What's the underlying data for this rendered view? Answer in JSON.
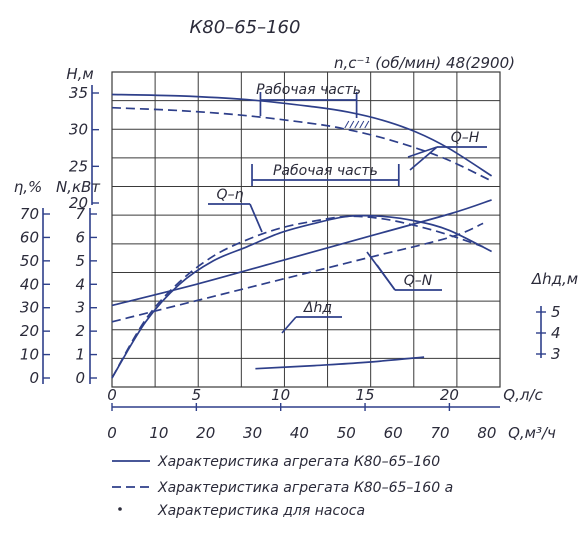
{
  "chart_data": {
    "type": "line",
    "title": "К80–65–160",
    "speed_label": "n,c⁻¹ (об/мин) 48(2900)",
    "x_primary": {
      "label": "Q,л/с",
      "range": [
        0,
        23
      ],
      "ticks": [
        0,
        5,
        10,
        15,
        20
      ]
    },
    "x_secondary": {
      "label": "Q,м³/ч",
      "range": [
        0,
        82.8
      ],
      "ticks": [
        0,
        10,
        20,
        30,
        40,
        50,
        60,
        70,
        80
      ]
    },
    "axes": {
      "H": {
        "label": "Н,м",
        "ticks": [
          20,
          25,
          30,
          35
        ]
      },
      "N": {
        "label": "N,кВт",
        "ticks": [
          0,
          1,
          2,
          3,
          4,
          5,
          6,
          7
        ]
      },
      "eta": {
        "label": "η,%",
        "ticks": [
          0,
          10,
          20,
          30,
          40,
          50,
          60,
          70
        ]
      },
      "dh": {
        "label": "Δhд,м",
        "ticks": [
          3,
          4,
          5
        ]
      }
    },
    "annotations": {
      "work_top": "Рабочая часть",
      "work_mid": "Рабочая часть",
      "qh": "Q–H",
      "qeta": "Q–η",
      "qn": "Q–N",
      "dh": "Δhд"
    },
    "series": [
      {
        "name": "Q–H",
        "axis": "H",
        "style": "solid",
        "x": [
          0,
          4,
          8,
          12,
          14,
          16,
          18,
          20,
          22.5
        ],
        "y": [
          34.8,
          34.6,
          34.1,
          33.1,
          32.4,
          31.3,
          29.7,
          27.4,
          23.7
        ]
      },
      {
        "name": "Q–H",
        "axis": "H",
        "style": "dashed",
        "x": [
          0,
          4,
          8,
          12,
          14,
          16,
          18,
          20,
          22.5
        ],
        "y": [
          33.0,
          32.6,
          31.9,
          30.8,
          30.0,
          28.9,
          27.5,
          25.8,
          23.0
        ]
      },
      {
        "name": "Q–η",
        "axis": "eta",
        "style": "solid",
        "x": [
          0,
          2,
          4,
          6,
          8,
          10,
          12,
          14,
          16,
          18,
          20,
          22.5
        ],
        "y": [
          0,
          24,
          40,
          50,
          56,
          62,
          66,
          69,
          69,
          67,
          63,
          54
        ]
      },
      {
        "name": "Q–η",
        "axis": "eta",
        "style": "dashed",
        "x": [
          0,
          2,
          4,
          6,
          8,
          10,
          12,
          14,
          16,
          18,
          20,
          22
        ],
        "y": [
          0,
          25,
          41,
          52,
          59,
          64,
          67,
          69,
          68,
          65,
          61,
          56
        ]
      },
      {
        "name": "Q–N",
        "axis": "N",
        "style": "solid",
        "x": [
          0,
          5,
          10,
          15,
          20,
          22.5
        ],
        "y": [
          3.1,
          4.0,
          5.0,
          6.0,
          7.0,
          7.6
        ]
      },
      {
        "name": "Q–N",
        "axis": "N",
        "style": "dashed",
        "x": [
          0,
          5,
          10,
          15,
          20,
          22
        ],
        "y": [
          2.4,
          3.3,
          4.2,
          5.1,
          6.0,
          6.6
        ]
      },
      {
        "name": "Δhд",
        "axis": "dh",
        "style": "solid",
        "x": [
          8.5,
          12,
          15,
          18.5
        ],
        "y": [
          2.3,
          2.45,
          2.6,
          2.85
        ]
      }
    ],
    "legend": [
      {
        "style": "solid",
        "label": "Характеристика агрегата К80–65–160"
      },
      {
        "style": "dashed",
        "label": "Характеристика агрегата К80–65–160 а"
      },
      {
        "style": "dot",
        "label": "Характеристика для насоса"
      }
    ],
    "grid": true
  }
}
